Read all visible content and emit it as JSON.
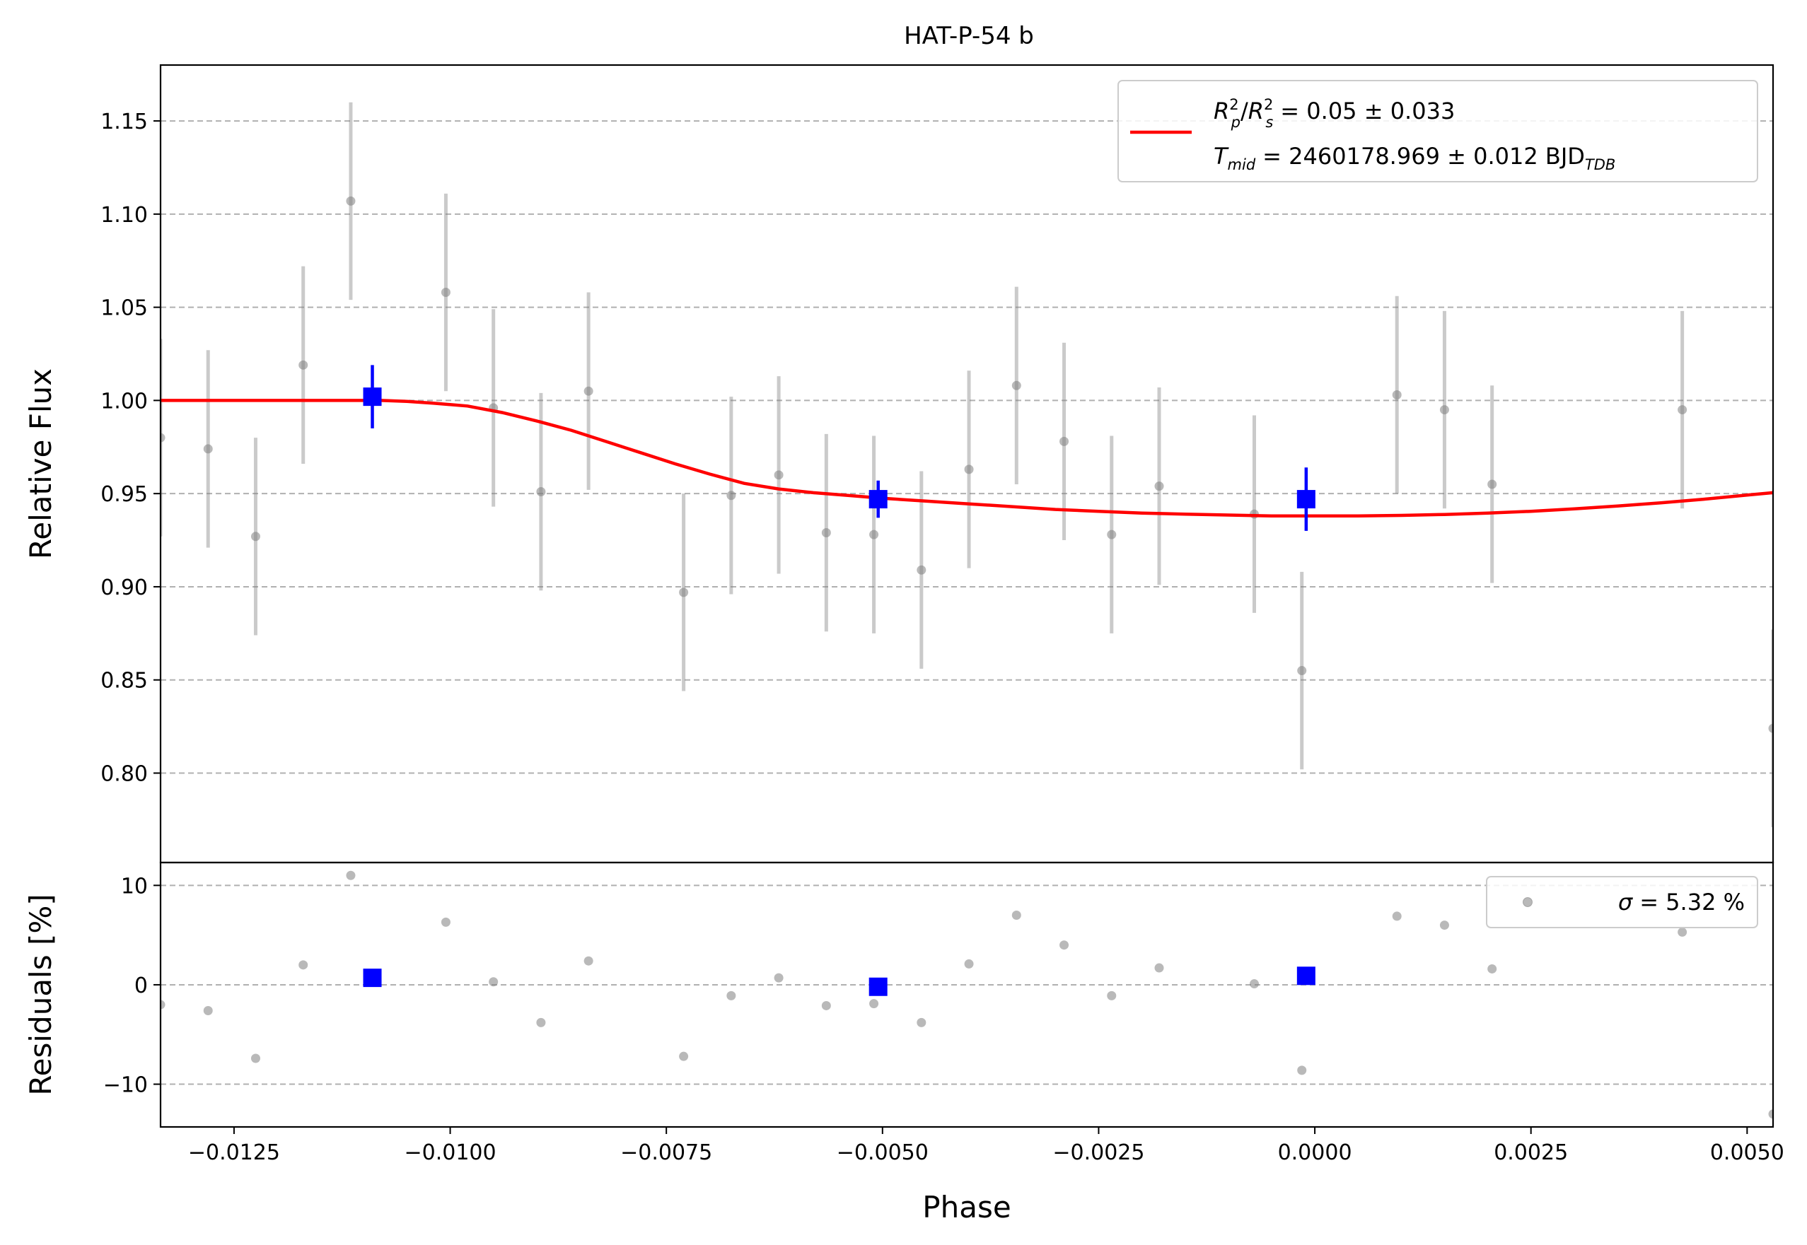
{
  "chart_data": {
    "type": "scatter",
    "title": "HAT-P-54 b",
    "xlabel": "Phase",
    "xlim": [
      -0.01335,
      0.0053
    ],
    "x_ticks": [
      -0.0125,
      -0.01,
      -0.0075,
      -0.005,
      -0.0025,
      0.0,
      0.0025,
      0.005
    ],
    "x_tick_labels": [
      "−0.0125",
      "−0.0100",
      "−0.0075",
      "−0.0050",
      "−0.0025",
      "0.0000",
      "0.0025",
      "0.0050"
    ],
    "grid": true,
    "top_panel": {
      "ylabel": "Relative Flux",
      "ylim": [
        0.752,
        1.18
      ],
      "y_ticks": [
        0.8,
        0.85,
        0.9,
        0.95,
        1.0,
        1.05,
        1.1,
        1.15
      ],
      "y_tick_labels": [
        "0.80",
        "0.85",
        "0.90",
        "0.95",
        "1.00",
        "1.05",
        "1.10",
        "1.15"
      ],
      "legend": {
        "position": "upper right",
        "line1_main": "R",
        "line1_rest": "= 0.05 ± 0.033",
        "line2_main": "T",
        "line2_sub": "mid",
        "line2_rest": "= 2460178.969 ± 0.012 BJD",
        "line2_unit_sub": "TDB"
      },
      "raw_points": {
        "color": "#808080",
        "error": 0.053,
        "x": [
          -0.01335,
          -0.0128,
          -0.01225,
          -0.0117,
          -0.01115,
          -0.01005,
          -0.0095,
          -0.00895,
          -0.0084,
          -0.0073,
          -0.00675,
          -0.0062,
          -0.00565,
          -0.0051,
          -0.00455,
          -0.004,
          -0.00345,
          -0.0029,
          -0.00235,
          -0.0018,
          -0.0007,
          -0.00015,
          0.00095,
          0.0015,
          0.00205,
          0.00425,
          0.0053
        ],
        "y": [
          0.98,
          0.974,
          0.927,
          1.019,
          1.107,
          1.058,
          0.996,
          0.951,
          1.005,
          0.897,
          0.949,
          0.96,
          0.929,
          0.928,
          0.909,
          0.963,
          1.008,
          0.978,
          0.928,
          0.954,
          0.939,
          0.855,
          1.003,
          0.995,
          0.955,
          0.995,
          0.824
        ]
      },
      "binned_points": {
        "color": "#0000ff",
        "x": [
          -0.0109,
          -0.00505,
          -0.0001
        ],
        "y": [
          1.002,
          0.947,
          0.947
        ],
        "errors": [
          0.017,
          0.01,
          0.017
        ]
      },
      "model": {
        "color": "#ff0000",
        "x": [
          -0.01335,
          -0.0125,
          -0.0115,
          -0.0108,
          -0.0105,
          -0.0102,
          -0.0098,
          -0.0094,
          -0.009,
          -0.0086,
          -0.0082,
          -0.0078,
          -0.0074,
          -0.007,
          -0.0066,
          -0.0062,
          -0.0058,
          -0.0054,
          -0.005,
          -0.0045,
          -0.004,
          -0.0035,
          -0.003,
          -0.0025,
          -0.002,
          -0.0015,
          -0.001,
          -0.0005,
          0.0,
          0.0005,
          0.001,
          0.0015,
          0.002,
          0.0025,
          0.003,
          0.0035,
          0.004,
          0.0045,
          0.005,
          0.0053
        ],
        "y": [
          1.0,
          1.0,
          1.0,
          1.0,
          0.9995,
          0.9985,
          0.997,
          0.9935,
          0.989,
          0.984,
          0.978,
          0.972,
          0.966,
          0.9605,
          0.9555,
          0.9525,
          0.9505,
          0.949,
          0.9475,
          0.946,
          0.9445,
          0.943,
          0.9415,
          0.9405,
          0.9395,
          0.939,
          0.9385,
          0.938,
          0.938,
          0.938,
          0.9383,
          0.9388,
          0.9395,
          0.9405,
          0.9418,
          0.9433,
          0.945,
          0.947,
          0.9492,
          0.9505
        ]
      }
    },
    "bottom_panel": {
      "ylabel": "Residuals [%]",
      "ylim": [
        -14.3,
        12.3
      ],
      "y_ticks": [
        -10,
        0,
        10
      ],
      "y_tick_labels": [
        "−10",
        "0",
        "10"
      ],
      "legend": {
        "position": "upper right",
        "label": "= 5.32 %",
        "symbol": "σ"
      },
      "raw_points": {
        "color": "#808080",
        "x": [
          -0.01335,
          -0.0128,
          -0.01225,
          -0.0117,
          -0.01115,
          -0.01005,
          -0.0095,
          -0.00895,
          -0.0084,
          -0.0073,
          -0.00675,
          -0.0062,
          -0.00565,
          -0.0051,
          -0.00455,
          -0.004,
          -0.00345,
          -0.0029,
          -0.00235,
          -0.0018,
          -0.0007,
          -0.00015,
          0.00095,
          0.0015,
          0.00205,
          0.00425,
          0.0053
        ],
        "y": [
          -2.0,
          -2.6,
          -7.4,
          2.0,
          11.0,
          6.3,
          0.3,
          -3.8,
          2.4,
          -7.2,
          -1.1,
          0.7,
          -2.1,
          -1.9,
          -3.8,
          2.1,
          7.0,
          4.0,
          -1.1,
          1.7,
          0.1,
          -8.6,
          6.9,
          6.0,
          1.6,
          5.3,
          -13.0
        ]
      },
      "binned_points": {
        "color": "#0000ff",
        "x": [
          -0.0109,
          -0.00505,
          -0.0001
        ],
        "y": [
          0.7,
          -0.2,
          0.9
        ]
      }
    }
  }
}
